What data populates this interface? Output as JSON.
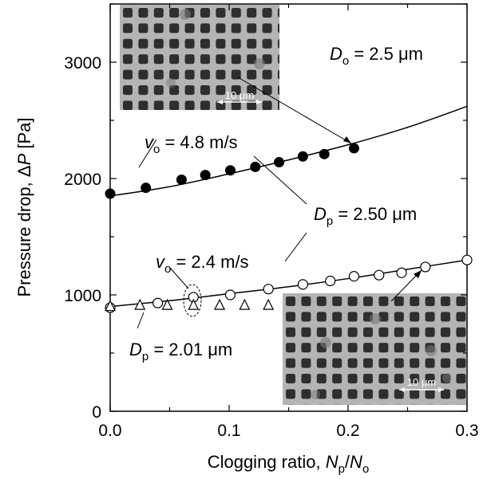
{
  "chart_data": {
    "type": "scatter",
    "title": "",
    "xlabel": {
      "main": "Clogging ratio, ",
      "num_letter": "N",
      "num_sub": "p",
      "slash": "/",
      "den_letter": "N",
      "den_sub": "o"
    },
    "ylabel": {
      "main": "Pressure drop, Δ",
      "var": "P",
      "unit": " [Pa]"
    },
    "xlim": [
      0,
      0.3
    ],
    "ylim": [
      0,
      3500
    ],
    "x_ticks": [
      0,
      0.1,
      0.2,
      0.3
    ],
    "x_tick_labels": [
      "0.0",
      "0.1",
      "0.2",
      "0.3"
    ],
    "y_ticks": [
      0,
      1000,
      2000,
      3000
    ],
    "y_tick_labels": [
      "0",
      "1000",
      "2000",
      "3000"
    ],
    "grid": false,
    "series": [
      {
        "marker": "filled-circle",
        "x": [
          0.0,
          0.03,
          0.06,
          0.08,
          0.101,
          0.122,
          0.142,
          0.162,
          0.18,
          0.205
        ],
        "y": [
          1870,
          1920,
          1990,
          2030,
          2070,
          2100,
          2140,
          2190,
          2210,
          2260
        ]
      },
      {
        "marker": "open-circle",
        "x": [
          0.0,
          0.04,
          0.07,
          0.101,
          0.133,
          0.162,
          0.185,
          0.205,
          0.226,
          0.245,
          0.265,
          0.3
        ],
        "y": [
          890,
          930,
          980,
          1000,
          1050,
          1090,
          1120,
          1160,
          1170,
          1190,
          1240,
          1300
        ]
      },
      {
        "marker": "open-triangle",
        "x": [
          0.0,
          0.025,
          0.048,
          0.07,
          0.092,
          0.113,
          0.133
        ],
        "y": [
          900,
          910,
          910,
          910,
          910,
          910,
          910
        ]
      }
    ],
    "fit_curves": [
      {
        "x": [
          0,
          0.05,
          0.1,
          0.15,
          0.2,
          0.25,
          0.3
        ],
        "y": [
          1850,
          1930,
          2040,
          2160,
          2290,
          2440,
          2620
        ]
      },
      {
        "x": [
          0,
          0.05,
          0.1,
          0.15,
          0.2,
          0.25,
          0.3
        ],
        "y": [
          900,
          950,
          1010,
          1070,
          1140,
          1220,
          1300
        ]
      }
    ],
    "annotations": {
      "Do": {
        "letter": "D",
        "sub": "o",
        "text": " = 2.5 μm"
      },
      "vo_high": {
        "letter": "v",
        "sub": "o",
        "text": " = 4.8 m/s"
      },
      "vo_low": {
        "letter": "v",
        "sub": "o",
        "text": " = 2.4 m/s"
      },
      "Dp_high": {
        "letter": "D",
        "sub": "p",
        "text": " = 2.50 μm"
      },
      "Dp_low": {
        "letter": "D",
        "sub": "p",
        "text": " = 2.01 μm"
      }
    },
    "insets": [
      {
        "scale_label": "10 μm"
      },
      {
        "scale_label": "10 μm"
      }
    ]
  }
}
